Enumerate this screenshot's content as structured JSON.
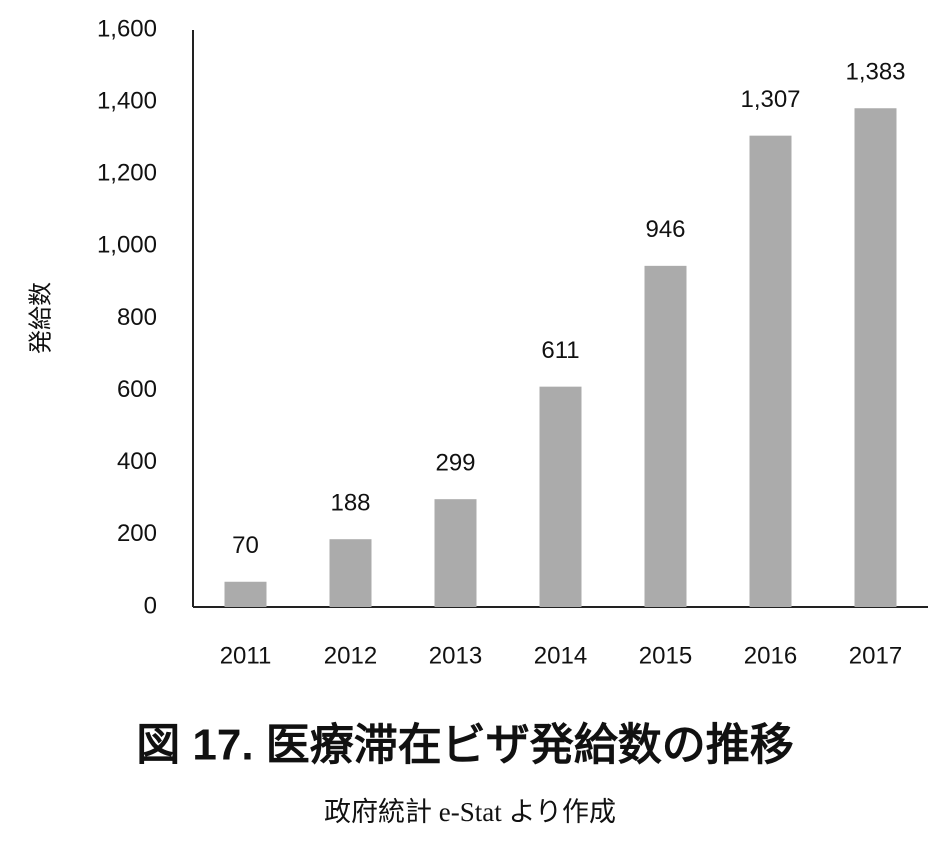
{
  "chart_data": {
    "type": "bar",
    "title": "図 17. 医療滞在ビザ発給数の推移",
    "subtitle": "政府統計 e-Stat より作成",
    "y_label": "発給数",
    "categories": [
      "2011",
      "2012",
      "2013",
      "2014",
      "2015",
      "2016",
      "2017"
    ],
    "values": [
      70,
      188,
      299,
      611,
      946,
      1307,
      1383
    ],
    "value_labels": [
      "70",
      "188",
      "299",
      "611",
      "946",
      "1,307",
      "1,383"
    ],
    "color": "#ababab",
    "ylim": [
      0,
      1600
    ],
    "yticks": [
      0,
      200,
      400,
      600,
      800,
      {
        "value": 1000,
        "label": "1,000"
      },
      {
        "value": 1200,
        "label": "1,200"
      },
      {
        "value": 1400,
        "label": "1,400"
      },
      {
        "value": 1600,
        "label": "1,600"
      }
    ],
    "grid": false
  }
}
